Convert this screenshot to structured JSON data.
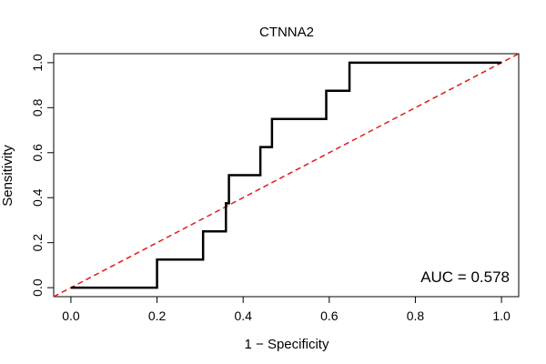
{
  "chart_data": {
    "type": "line",
    "title": "CTNNA2",
    "xlabel": "1 − Specificity",
    "ylabel": "Sensitivity",
    "xlim": [
      -0.04,
      1.04
    ],
    "ylim": [
      -0.04,
      1.04
    ],
    "x_ticks": [
      0.0,
      0.2,
      0.4,
      0.6,
      0.8,
      1.0
    ],
    "x_tick_labels": [
      "0.0",
      "0.2",
      "0.4",
      "0.6",
      "0.8",
      "1.0"
    ],
    "y_ticks": [
      0.0,
      0.2,
      0.4,
      0.6,
      0.8,
      1.0
    ],
    "y_tick_labels": [
      "0.0",
      "0.2",
      "0.4",
      "0.6",
      "0.8",
      "1.0"
    ],
    "grid": false,
    "legend": "none",
    "series": [
      {
        "color": "#000000",
        "style": "solid-step",
        "x": [
          0.0,
          0.2,
          0.2,
          0.307,
          0.307,
          0.36,
          0.36,
          0.367,
          0.367,
          0.44,
          0.44,
          0.453,
          0.453,
          0.467,
          0.467,
          0.593,
          0.593,
          0.647,
          0.647,
          1.0
        ],
        "y": [
          0.0,
          0.0,
          0.125,
          0.125,
          0.25,
          0.25,
          0.375,
          0.375,
          0.5,
          0.5,
          0.625,
          0.625,
          0.625,
          0.625,
          0.75,
          0.75,
          0.875,
          0.875,
          1.0,
          1.0
        ]
      },
      {
        "color": "#e31a1c",
        "style": "dashed",
        "x": [
          -0.04,
          1.04
        ],
        "y": [
          -0.04,
          1.04
        ]
      }
    ],
    "annotations": [
      {
        "text": "AUC = 0.578",
        "position": "bottom-right"
      }
    ]
  }
}
